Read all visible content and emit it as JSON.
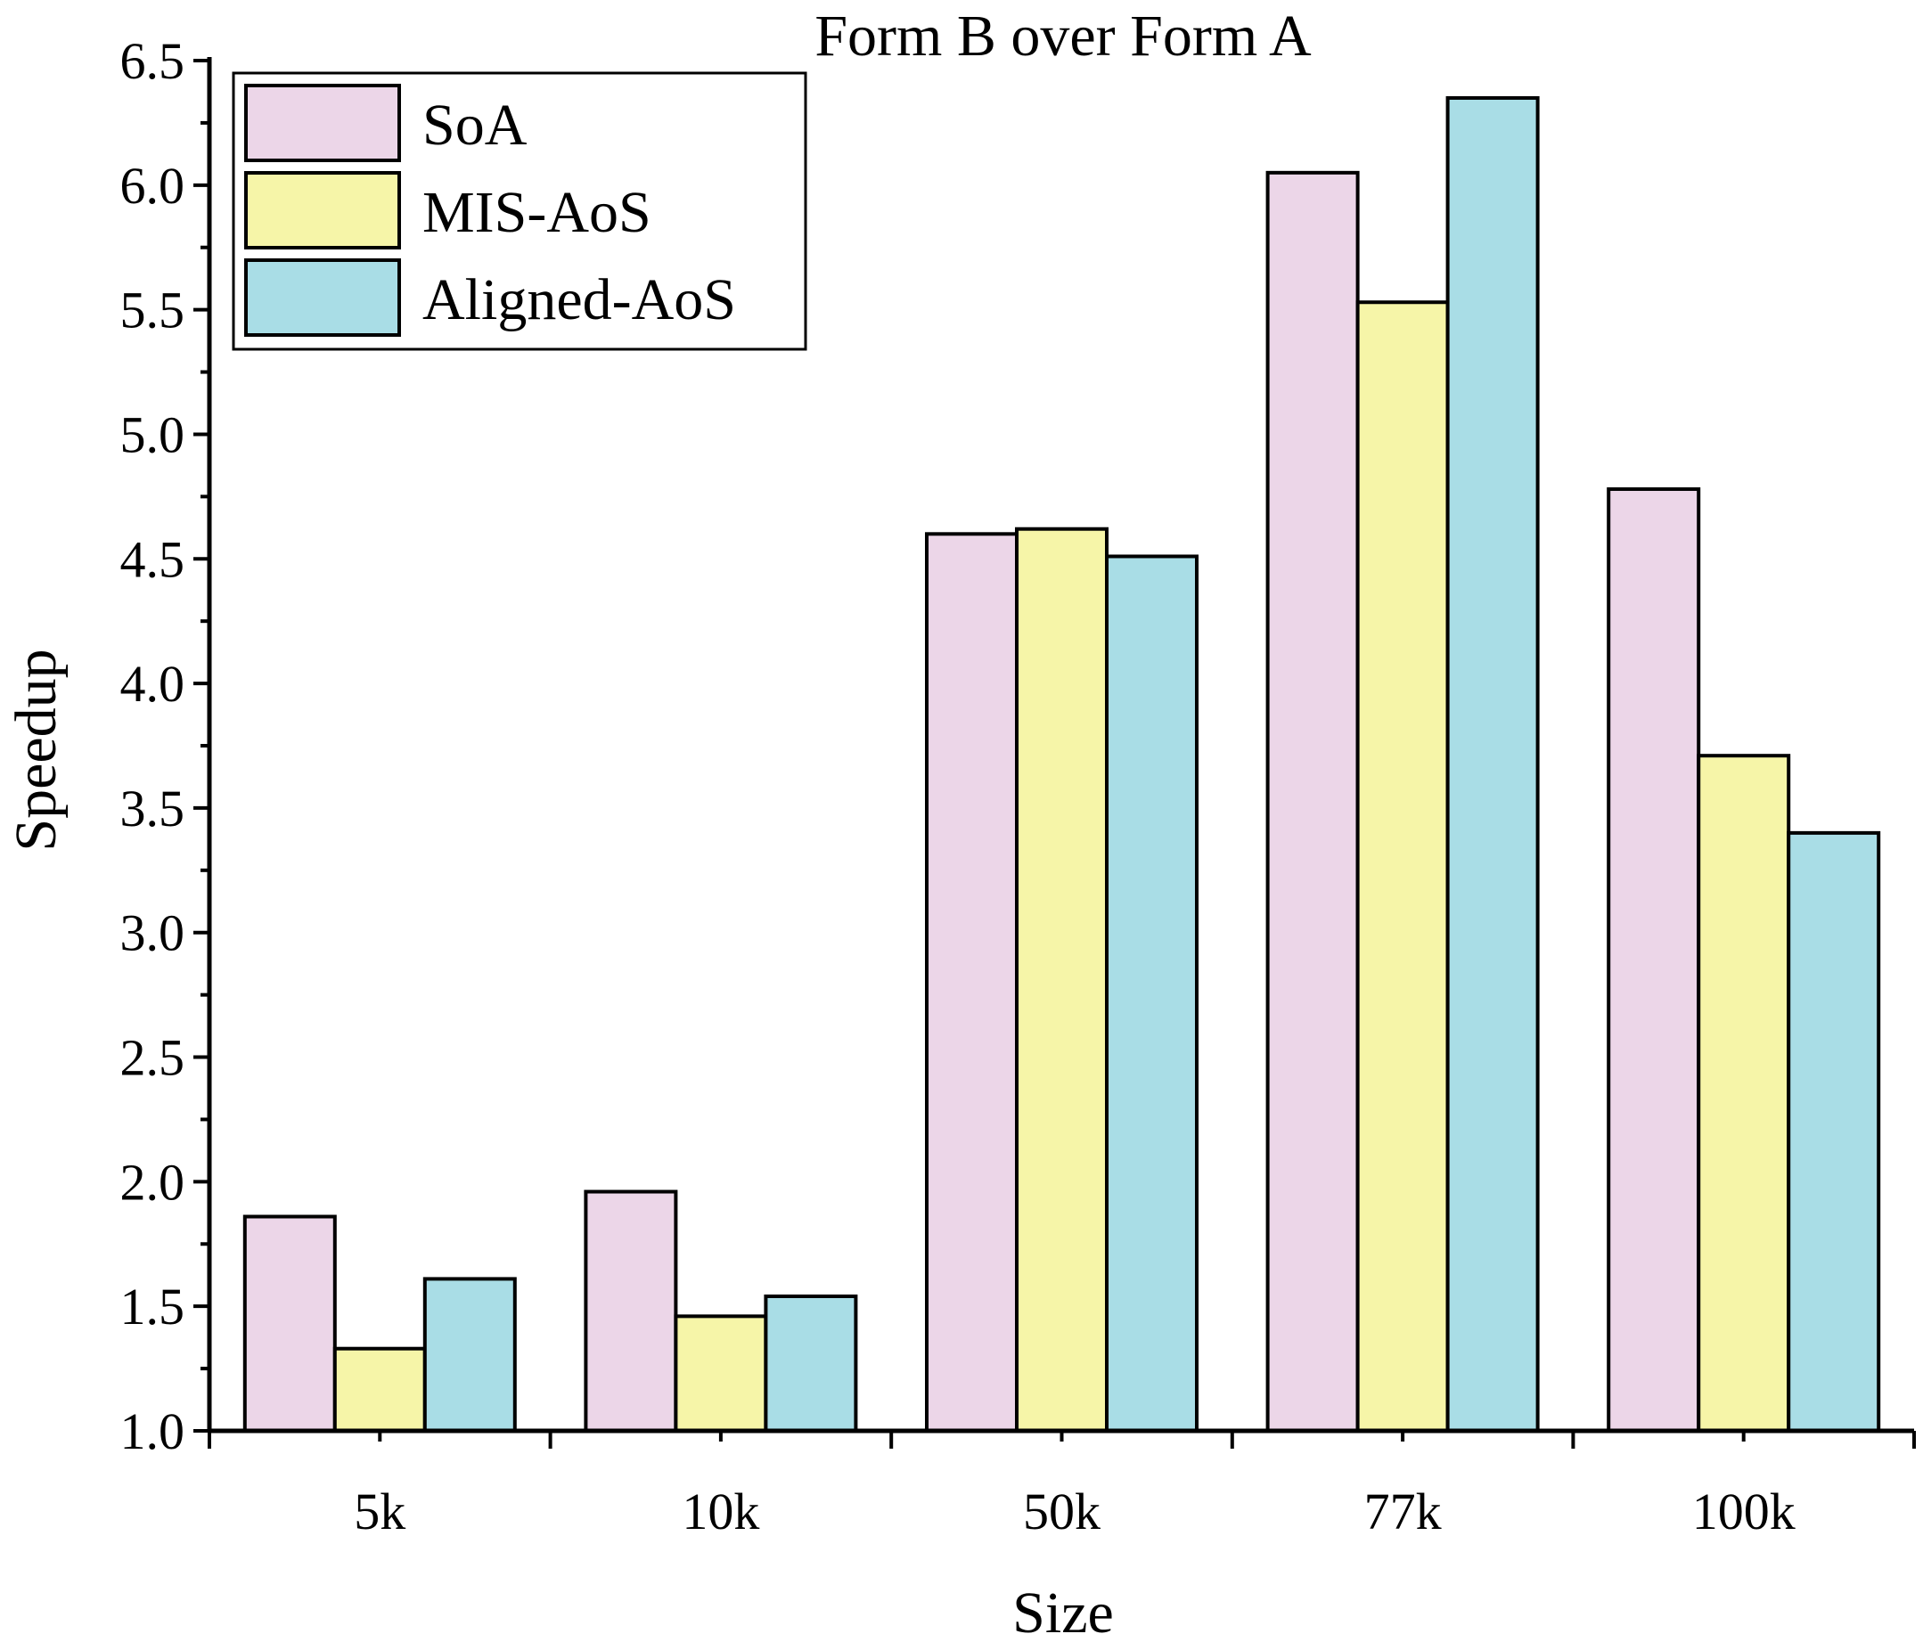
{
  "chart_data": {
    "type": "bar",
    "title": "Form B over Form A",
    "xlabel": "Size",
    "ylabel": "Speedup",
    "categories": [
      "5k",
      "10k",
      "50k",
      "77k",
      "100k"
    ],
    "series": [
      {
        "name": "SoA",
        "color": "#ecd6e8",
        "values": [
          1.86,
          1.96,
          4.6,
          6.05,
          4.78
        ]
      },
      {
        "name": "MIS-AoS",
        "color": "#f6f5a8",
        "values": [
          1.33,
          1.46,
          4.62,
          5.53,
          3.71
        ]
      },
      {
        "name": "Aligned-AoS",
        "color": "#a9dde6",
        "values": [
          1.61,
          1.54,
          4.51,
          6.35,
          3.4
        ]
      }
    ],
    "ylim": [
      1.0,
      6.5
    ],
    "yticks": [
      "1.0",
      "1.5",
      "2.0",
      "2.5",
      "3.0",
      "3.5",
      "4.0",
      "4.5",
      "5.0",
      "5.5",
      "6.0",
      "6.5"
    ],
    "legend_position": "top-left",
    "grid": false
  }
}
